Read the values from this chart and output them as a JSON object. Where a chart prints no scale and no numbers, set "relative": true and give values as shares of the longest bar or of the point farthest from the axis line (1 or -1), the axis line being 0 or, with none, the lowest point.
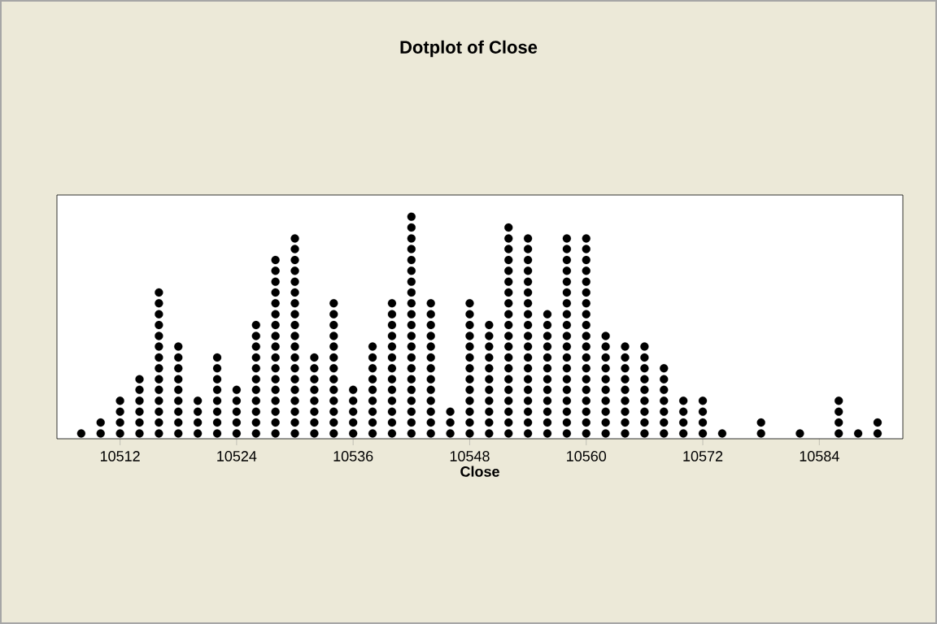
{
  "chart_data": {
    "type": "scatter",
    "title": "Dotplot of Close",
    "xlabel": "Close",
    "relative": true,
    "marker": "circle",
    "color": "#000000",
    "series": [
      {
        "x": [
          10508
        ],
        "values": [
          0.024
        ]
      },
      {
        "x": [
          10510,
          10510
        ],
        "values": [
          0.024,
          0.073
        ]
      },
      {
        "x": [
          10512,
          10512,
          10512,
          10512
        ],
        "values": [
          0.024,
          0.073,
          0.122,
          0.171
        ]
      },
      {
        "x": [
          10514,
          10514,
          10514,
          10514,
          10514,
          10514
        ],
        "values": [
          0.024,
          0.073,
          0.122,
          0.171,
          0.22,
          0.268
        ]
      },
      {
        "x": [
          10516,
          10516,
          10516,
          10516,
          10516,
          10516,
          10516,
          10516,
          10516,
          10516,
          10516,
          10516,
          10516,
          10516
        ],
        "values": [
          0.024,
          0.073,
          0.122,
          0.171,
          0.22,
          0.268,
          0.317,
          0.366,
          0.415,
          0.463,
          0.512,
          0.561,
          0.61,
          0.659
        ]
      },
      {
        "x": [
          10518,
          10518,
          10518,
          10518,
          10518,
          10518,
          10518,
          10518,
          10518
        ],
        "values": [
          0.024,
          0.073,
          0.122,
          0.171,
          0.22,
          0.268,
          0.317,
          0.366,
          0.415
        ]
      },
      {
        "x": [
          10520,
          10520,
          10520,
          10520
        ],
        "values": [
          0.024,
          0.073,
          0.122,
          0.171
        ]
      },
      {
        "x": [
          10522,
          10522,
          10522,
          10522,
          10522,
          10522,
          10522,
          10522
        ],
        "values": [
          0.024,
          0.073,
          0.122,
          0.171,
          0.22,
          0.268,
          0.317,
          0.366
        ]
      },
      {
        "x": [
          10524,
          10524,
          10524,
          10524,
          10524
        ],
        "values": [
          0.024,
          0.073,
          0.122,
          0.171,
          0.22
        ]
      },
      {
        "x": [
          10526,
          10526,
          10526,
          10526,
          10526,
          10526,
          10526,
          10526,
          10526,
          10526,
          10526
        ],
        "values": [
          0.024,
          0.073,
          0.122,
          0.171,
          0.22,
          0.268,
          0.317,
          0.366,
          0.415,
          0.463,
          0.512
        ]
      },
      {
        "x": [
          10528,
          10528,
          10528,
          10528,
          10528,
          10528,
          10528,
          10528,
          10528,
          10528,
          10528,
          10528,
          10528,
          10528,
          10528,
          10528,
          10528
        ],
        "values": [
          0.024,
          0.073,
          0.122,
          0.171,
          0.22,
          0.268,
          0.317,
          0.366,
          0.415,
          0.463,
          0.512,
          0.561,
          0.61,
          0.659,
          0.707,
          0.756,
          0.805
        ]
      },
      {
        "x": [
          10530,
          10530,
          10530,
          10530,
          10530,
          10530,
          10530,
          10530,
          10530,
          10530,
          10530,
          10530,
          10530,
          10530,
          10530,
          10530,
          10530,
          10530,
          10530
        ],
        "values": [
          0.024,
          0.073,
          0.122,
          0.171,
          0.22,
          0.268,
          0.317,
          0.366,
          0.415,
          0.463,
          0.512,
          0.561,
          0.61,
          0.659,
          0.707,
          0.756,
          0.805,
          0.854,
          0.902
        ]
      },
      {
        "x": [
          10532,
          10532,
          10532,
          10532,
          10532,
          10532,
          10532,
          10532
        ],
        "values": [
          0.024,
          0.073,
          0.122,
          0.171,
          0.22,
          0.268,
          0.317,
          0.366
        ]
      },
      {
        "x": [
          10534,
          10534,
          10534,
          10534,
          10534,
          10534,
          10534,
          10534,
          10534,
          10534,
          10534,
          10534,
          10534
        ],
        "values": [
          0.024,
          0.073,
          0.122,
          0.171,
          0.22,
          0.268,
          0.317,
          0.366,
          0.415,
          0.463,
          0.512,
          0.561,
          0.61
        ]
      },
      {
        "x": [
          10536,
          10536,
          10536,
          10536,
          10536
        ],
        "values": [
          0.024,
          0.073,
          0.122,
          0.171,
          0.22
        ]
      },
      {
        "x": [
          10538,
          10538,
          10538,
          10538,
          10538,
          10538,
          10538,
          10538,
          10538
        ],
        "values": [
          0.024,
          0.073,
          0.122,
          0.171,
          0.22,
          0.268,
          0.317,
          0.366,
          0.415
        ]
      },
      {
        "x": [
          10540,
          10540,
          10540,
          10540,
          10540,
          10540,
          10540,
          10540,
          10540,
          10540,
          10540,
          10540,
          10540
        ],
        "values": [
          0.024,
          0.073,
          0.122,
          0.171,
          0.22,
          0.268,
          0.317,
          0.366,
          0.415,
          0.463,
          0.512,
          0.561,
          0.61
        ]
      },
      {
        "x": [
          10542,
          10542,
          10542,
          10542,
          10542,
          10542,
          10542,
          10542,
          10542,
          10542,
          10542,
          10542,
          10542,
          10542,
          10542,
          10542,
          10542,
          10542,
          10542,
          10542,
          10542
        ],
        "values": [
          0.024,
          0.073,
          0.122,
          0.171,
          0.22,
          0.268,
          0.317,
          0.366,
          0.415,
          0.463,
          0.512,
          0.561,
          0.61,
          0.659,
          0.707,
          0.756,
          0.805,
          0.854,
          0.902,
          0.951,
          1
        ]
      },
      {
        "x": [
          10544,
          10544,
          10544,
          10544,
          10544,
          10544,
          10544,
          10544,
          10544,
          10544,
          10544,
          10544,
          10544
        ],
        "values": [
          0.024,
          0.073,
          0.122,
          0.171,
          0.22,
          0.268,
          0.317,
          0.366,
          0.415,
          0.463,
          0.512,
          0.561,
          0.61
        ]
      },
      {
        "x": [
          10546,
          10546,
          10546
        ],
        "values": [
          0.024,
          0.073,
          0.122
        ]
      },
      {
        "x": [
          10548,
          10548,
          10548,
          10548,
          10548,
          10548,
          10548,
          10548,
          10548,
          10548,
          10548,
          10548,
          10548
        ],
        "values": [
          0.024,
          0.073,
          0.122,
          0.171,
          0.22,
          0.268,
          0.317,
          0.366,
          0.415,
          0.463,
          0.512,
          0.561,
          0.61
        ]
      },
      {
        "x": [
          10550,
          10550,
          10550,
          10550,
          10550,
          10550,
          10550,
          10550,
          10550,
          10550,
          10550
        ],
        "values": [
          0.024,
          0.073,
          0.122,
          0.171,
          0.22,
          0.268,
          0.317,
          0.366,
          0.415,
          0.463,
          0.512
        ]
      },
      {
        "x": [
          10552,
          10552,
          10552,
          10552,
          10552,
          10552,
          10552,
          10552,
          10552,
          10552,
          10552,
          10552,
          10552,
          10552,
          10552,
          10552,
          10552,
          10552,
          10552,
          10552
        ],
        "values": [
          0.024,
          0.073,
          0.122,
          0.171,
          0.22,
          0.268,
          0.317,
          0.366,
          0.415,
          0.463,
          0.512,
          0.561,
          0.61,
          0.659,
          0.707,
          0.756,
          0.805,
          0.854,
          0.902,
          0.951
        ]
      },
      {
        "x": [
          10554,
          10554,
          10554,
          10554,
          10554,
          10554,
          10554,
          10554,
          10554,
          10554,
          10554,
          10554,
          10554,
          10554,
          10554,
          10554,
          10554,
          10554,
          10554
        ],
        "values": [
          0.024,
          0.073,
          0.122,
          0.171,
          0.22,
          0.268,
          0.317,
          0.366,
          0.415,
          0.463,
          0.512,
          0.561,
          0.61,
          0.659,
          0.707,
          0.756,
          0.805,
          0.854,
          0.902
        ]
      },
      {
        "x": [
          10556,
          10556,
          10556,
          10556,
          10556,
          10556,
          10556,
          10556,
          10556,
          10556,
          10556,
          10556
        ],
        "values": [
          0.024,
          0.073,
          0.122,
          0.171,
          0.22,
          0.268,
          0.317,
          0.366,
          0.415,
          0.463,
          0.512,
          0.561
        ]
      },
      {
        "x": [
          10558,
          10558,
          10558,
          10558,
          10558,
          10558,
          10558,
          10558,
          10558,
          10558,
          10558,
          10558,
          10558,
          10558,
          10558,
          10558,
          10558,
          10558,
          10558
        ],
        "values": [
          0.024,
          0.073,
          0.122,
          0.171,
          0.22,
          0.268,
          0.317,
          0.366,
          0.415,
          0.463,
          0.512,
          0.561,
          0.61,
          0.659,
          0.707,
          0.756,
          0.805,
          0.854,
          0.902
        ]
      },
      {
        "x": [
          10560,
          10560,
          10560,
          10560,
          10560,
          10560,
          10560,
          10560,
          10560,
          10560,
          10560,
          10560,
          10560,
          10560,
          10560,
          10560,
          10560,
          10560,
          10560
        ],
        "values": [
          0.024,
          0.073,
          0.122,
          0.171,
          0.22,
          0.268,
          0.317,
          0.366,
          0.415,
          0.463,
          0.512,
          0.561,
          0.61,
          0.659,
          0.707,
          0.756,
          0.805,
          0.854,
          0.902
        ]
      },
      {
        "x": [
          10562,
          10562,
          10562,
          10562,
          10562,
          10562,
          10562,
          10562,
          10562,
          10562
        ],
        "values": [
          0.024,
          0.073,
          0.122,
          0.171,
          0.22,
          0.268,
          0.317,
          0.366,
          0.415,
          0.463
        ]
      },
      {
        "x": [
          10564,
          10564,
          10564,
          10564,
          10564,
          10564,
          10564,
          10564,
          10564
        ],
        "values": [
          0.024,
          0.073,
          0.122,
          0.171,
          0.22,
          0.268,
          0.317,
          0.366,
          0.415
        ]
      },
      {
        "x": [
          10566,
          10566,
          10566,
          10566,
          10566,
          10566,
          10566,
          10566,
          10566
        ],
        "values": [
          0.024,
          0.073,
          0.122,
          0.171,
          0.22,
          0.268,
          0.317,
          0.366,
          0.415
        ]
      },
      {
        "x": [
          10568,
          10568,
          10568,
          10568,
          10568,
          10568,
          10568
        ],
        "values": [
          0.024,
          0.073,
          0.122,
          0.171,
          0.22,
          0.268,
          0.317
        ]
      },
      {
        "x": [
          10570,
          10570,
          10570,
          10570
        ],
        "values": [
          0.024,
          0.073,
          0.122,
          0.171
        ]
      },
      {
        "x": [
          10572,
          10572,
          10572,
          10572
        ],
        "values": [
          0.024,
          0.073,
          0.122,
          0.171
        ]
      },
      {
        "x": [
          10574
        ],
        "values": [
          0.024
        ]
      },
      {
        "x": [
          10578,
          10578
        ],
        "values": [
          0.024,
          0.073
        ]
      },
      {
        "x": [
          10582
        ],
        "values": [
          0.024
        ]
      },
      {
        "x": [
          10586,
          10586,
          10586,
          10586
        ],
        "values": [
          0.024,
          0.073,
          0.122,
          0.171
        ]
      },
      {
        "x": [
          10588
        ],
        "values": [
          0.024
        ]
      },
      {
        "x": [
          10590,
          10590
        ],
        "values": [
          0.024,
          0.073
        ]
      }
    ],
    "xlim": [
      10505.5,
      10592.6
    ],
    "xticks": [
      {
        "value": 10512,
        "label": "10512"
      },
      {
        "value": 10524,
        "label": "10524"
      },
      {
        "value": 10536,
        "label": "10536"
      },
      {
        "value": 10548,
        "label": "10548"
      },
      {
        "value": 10560,
        "label": "10560"
      },
      {
        "value": 10572,
        "label": "10572"
      },
      {
        "value": 10584,
        "label": "10584"
      }
    ]
  }
}
